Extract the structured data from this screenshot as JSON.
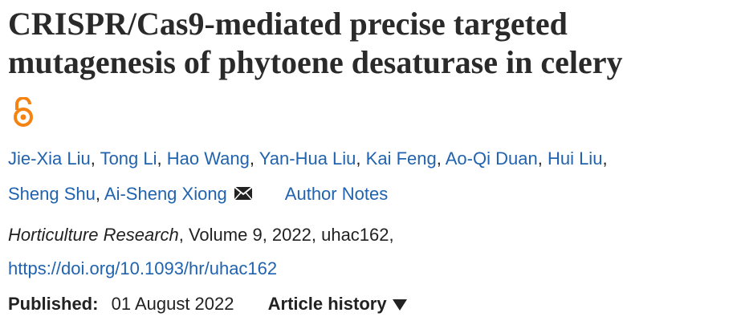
{
  "title": "CRISPR/Cas9-mediated precise targeted mutagenesis of phytoene desaturase in celery",
  "authors": [
    "Jie-Xia Liu",
    "Tong Li",
    "Hao Wang",
    "Yan-Hua Liu",
    "Kai Feng",
    "Ao-Qi Duan",
    "Hui Liu",
    "Sheng Shu",
    "Ai-Sheng Xiong"
  ],
  "author_separator": ",",
  "author_notes": "Author Notes",
  "citation": {
    "journal": "Horticulture Research",
    "details": ", Volume 9, 2022, uhac162,"
  },
  "doi": "https://doi.org/10.1093/hr/uhac162",
  "published_label": "Published:",
  "published_date": "01 August 2022",
  "article_history": "Article history"
}
